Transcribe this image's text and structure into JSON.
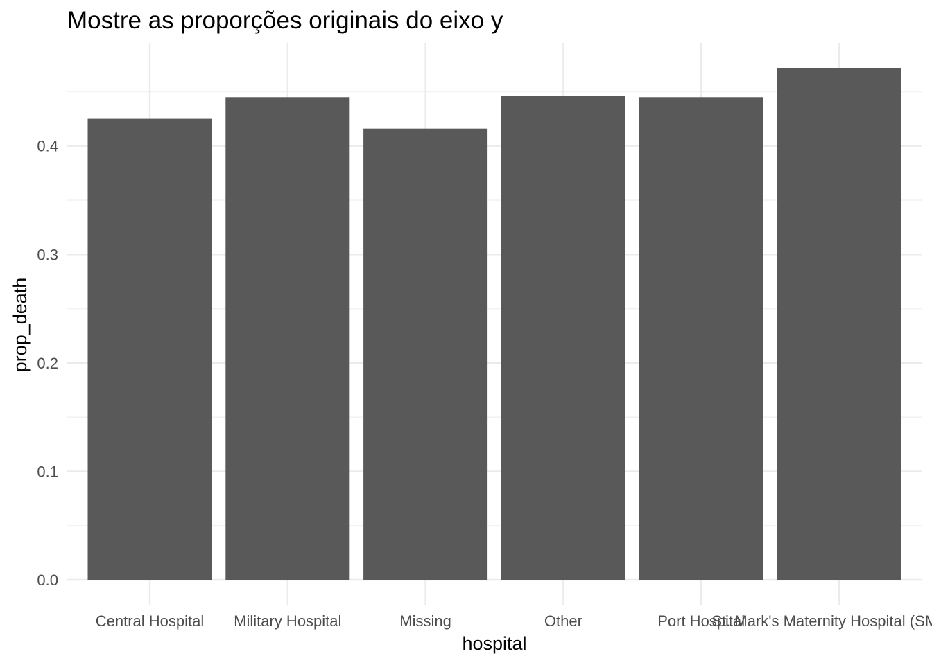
{
  "chart_data": {
    "type": "bar",
    "title": "Mostre as proporções originais do eixo y",
    "xlabel": "hospital",
    "ylabel": "prop_death",
    "categories": [
      "Central Hospital",
      "Military Hospital",
      "Missing",
      "Other",
      "Port Hospital",
      "St. Mark's Maternity Hospital (SMMH)"
    ],
    "values": [
      0.425,
      0.445,
      0.416,
      0.446,
      0.445,
      0.472
    ],
    "ylim": [
      0,
      0.5
    ],
    "yticks": [
      0.0,
      0.1,
      0.2,
      0.3,
      0.4
    ],
    "ytick_labels": [
      "0.0",
      "0.1",
      "0.2",
      "0.3",
      "0.4"
    ],
    "grid": true,
    "bar_color": "#595959",
    "gridline_color": "#ebebeb",
    "background": "#ffffff"
  }
}
